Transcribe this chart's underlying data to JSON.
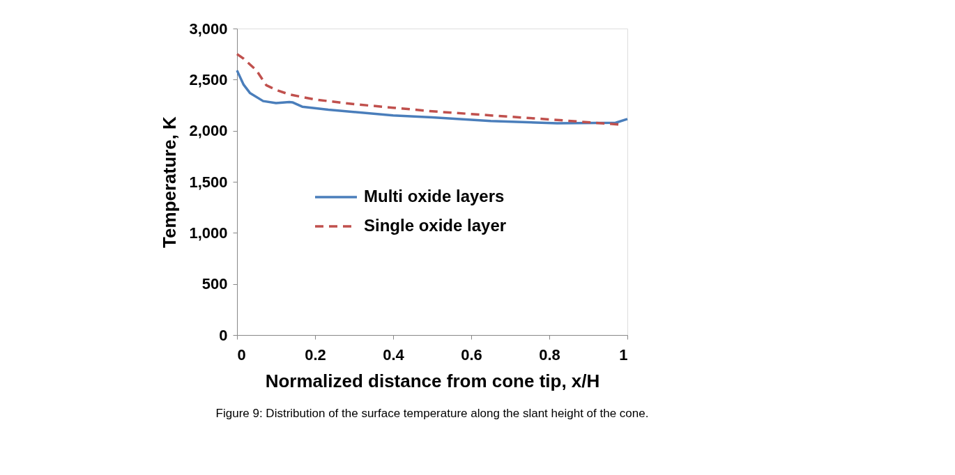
{
  "chart_data": {
    "type": "line",
    "xlabel": "Normalized distance from cone tip, x/H",
    "ylabel": "Temperature, K",
    "xlim": [
      0,
      1
    ],
    "xticks": [
      0,
      0.2,
      0.4,
      0.6,
      0.8,
      1
    ],
    "ylim": [
      0,
      3000
    ],
    "yticks": [
      {
        "value": 0,
        "label": "0"
      },
      {
        "value": 500,
        "label": "500"
      },
      {
        "value": 1000,
        "label": "1,000"
      },
      {
        "value": 1500,
        "label": "1,500"
      },
      {
        "value": 2000,
        "label": "2,000"
      },
      {
        "value": 2500,
        "label": "2,500"
      },
      {
        "value": 3000,
        "label": "3,000"
      }
    ],
    "grid": false,
    "legend": "left",
    "annotations": [
      "Figure 9: Distribution of the surface temperature along the slant height of the cone."
    ],
    "series": [
      {
        "name": "Multi oxide layers",
        "color": "#4a7ebb",
        "line_style": "solid",
        "x": [
          0,
          0.017,
          0.033,
          0.067,
          0.1,
          0.134,
          0.142,
          0.167,
          0.234,
          0.4,
          0.5,
          0.65,
          0.82,
          0.97,
          1
        ],
        "values": [
          2590,
          2450,
          2370,
          2290,
          2270,
          2280,
          2278,
          2235,
          2205,
          2150,
          2130,
          2095,
          2072,
          2078,
          2115
        ]
      },
      {
        "name": "Single oxide layer",
        "color": "#c0504d",
        "line_style": "dashed",
        "x": [
          0,
          0.017,
          0.05,
          0.075,
          0.1,
          0.134,
          0.2,
          0.3,
          0.4,
          0.5,
          0.65,
          0.82,
          0.98
        ],
        "values": [
          2750,
          2705,
          2590,
          2445,
          2400,
          2355,
          2305,
          2260,
          2225,
          2190,
          2150,
          2105,
          2060
        ]
      }
    ]
  }
}
